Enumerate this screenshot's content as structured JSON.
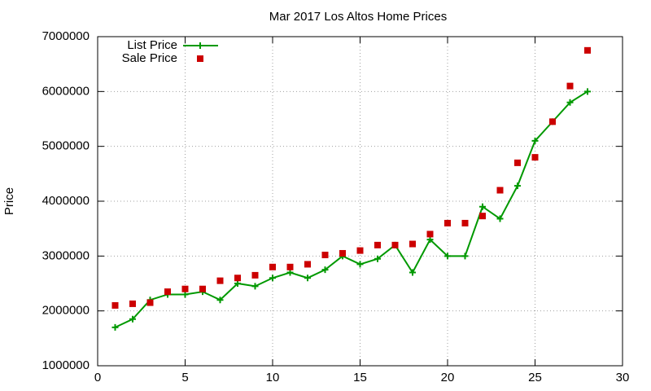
{
  "chart_data": {
    "type": "line",
    "title": "Mar 2017 Los Altos Home Prices",
    "y_label": "Price",
    "x": [
      1,
      2,
      3,
      4,
      5,
      6,
      7,
      8,
      9,
      10,
      11,
      12,
      13,
      14,
      15,
      16,
      17,
      18,
      19,
      20,
      21,
      22,
      23,
      24,
      25,
      26,
      27,
      28
    ],
    "series": [
      {
        "name": "List Price",
        "color": "#009900",
        "mode": "linespoints",
        "values": [
          1700000,
          1850000,
          2200000,
          2300000,
          2300000,
          2350000,
          2200000,
          2500000,
          2450000,
          2600000,
          2700000,
          2600000,
          2750000,
          3000000,
          2850000,
          2950000,
          3200000,
          2700000,
          3300000,
          3000000,
          3000000,
          3900000,
          3680000,
          4280000,
          5100000,
          5450000,
          5800000,
          6000000
        ]
      },
      {
        "name": "Sale Price",
        "color": "#cc0000",
        "mode": "points",
        "values": [
          2100000,
          2130000,
          2150000,
          2350000,
          2400000,
          2400000,
          2550000,
          2600000,
          2650000,
          2800000,
          2800000,
          2850000,
          3020000,
          3050000,
          3100000,
          3200000,
          3200000,
          3220000,
          3400000,
          3600000,
          3600000,
          3730000,
          4200000,
          4700000,
          4800000,
          5450000,
          6100000,
          6750000
        ]
      }
    ],
    "xlim": [
      0,
      30
    ],
    "xticks": [
      0,
      5,
      10,
      15,
      20,
      25,
      30
    ],
    "ylim": [
      1000000,
      7000000
    ],
    "yticks": [
      1000000,
      2000000,
      3000000,
      4000000,
      5000000,
      6000000,
      7000000
    ],
    "grid": true,
    "legend": "top-left"
  }
}
